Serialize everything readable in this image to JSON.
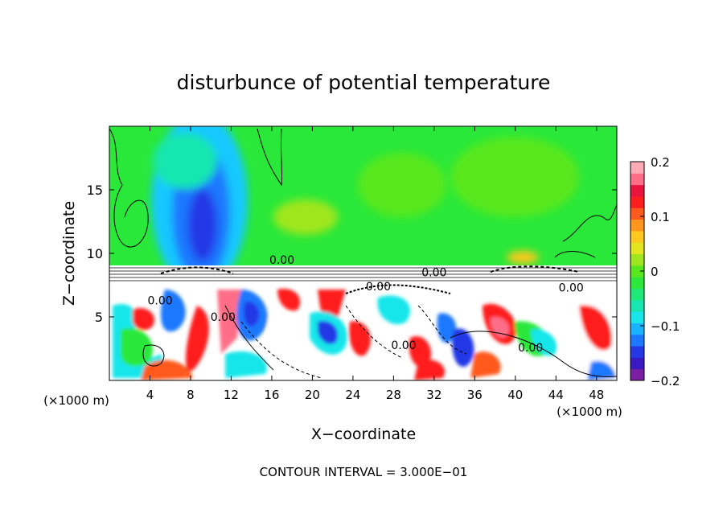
{
  "chart_data": {
    "type": "heatmap",
    "title": "disturbunce of potential temperature",
    "xlabel": "X−coordinate",
    "ylabel": "Z−coordinate",
    "x_unit": "(×1000 m)",
    "x_unit_right": "(×1000 m)",
    "xlim": [
      0,
      50
    ],
    "ylim": [
      0,
      20
    ],
    "x_ticks": [
      4,
      8,
      12,
      16,
      20,
      24,
      28,
      32,
      36,
      40,
      44,
      48
    ],
    "y_ticks": [
      5,
      10,
      15
    ],
    "colorbar": {
      "range": [
        -0.2,
        0.2
      ],
      "tick_values": [
        0.2,
        0.1,
        0,
        -0.1,
        -0.2
      ],
      "tick_labels": [
        "0.2",
        "0.1",
        "0",
        "−0.1",
        "−0.2"
      ],
      "colors": [
        "#7a1fa2",
        "#3b19c2",
        "#2438e6",
        "#1e78ff",
        "#19b4ff",
        "#18e6ea",
        "#18e6b0",
        "#1ee878",
        "#2ce83a",
        "#59e81e",
        "#a0e61e",
        "#e2e61e",
        "#ffc81e",
        "#ff961e",
        "#ff5a1e",
        "#ff1e1e",
        "#e8143c",
        "#ff6e86",
        "#ffaab4"
      ]
    },
    "contour_labels": [
      {
        "x": 17.0,
        "z": 9.5,
        "text": "0.00"
      },
      {
        "x": 32.0,
        "z": 8.5,
        "text": "0.00"
      },
      {
        "x": 26.5,
        "z": 7.4,
        "text": "0.00"
      },
      {
        "x": 45.5,
        "z": 7.3,
        "text": "0.00"
      },
      {
        "x": 5.0,
        "z": 6.3,
        "text": "0.00"
      },
      {
        "x": 11.2,
        "z": 5.0,
        "text": "0.00"
      },
      {
        "x": 29.0,
        "z": 2.8,
        "text": "0.00"
      },
      {
        "x": 41.5,
        "z": 2.6,
        "text": "0.00"
      }
    ],
    "annotation": "CONTOUR INTERVAL = 3.000E−01",
    "colorscale": "rainbow (purple → blue → cyan → green → yellow → red → pink)",
    "grid": false,
    "legend": "colorbar right"
  }
}
